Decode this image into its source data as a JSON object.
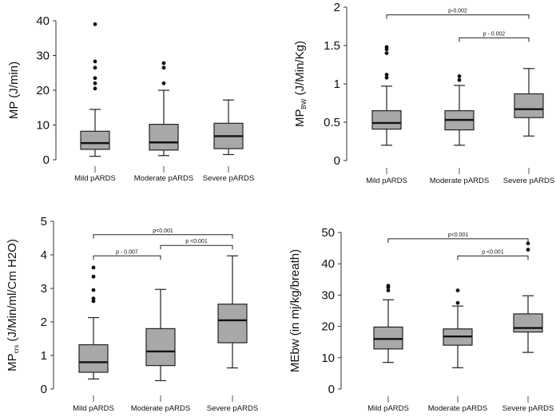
{
  "chart_data": [
    {
      "type": "box",
      "ylabel": "MP (J/min)",
      "yticks": [
        0,
        10,
        20,
        30,
        40
      ],
      "ylim": [
        0,
        40
      ],
      "categories": [
        "Mild pARDS",
        "Moderate pARDS",
        "Severe pARDS"
      ],
      "boxes": [
        {
          "min": 1,
          "q1": 3,
          "median": 4.8,
          "q3": 8.2,
          "max": 14.5,
          "outliers": [
            39,
            28.3,
            26.5,
            23.5,
            22,
            20.5
          ]
        },
        {
          "min": 1.2,
          "q1": 2.8,
          "median": 5,
          "q3": 10.2,
          "max": 20,
          "outliers": [
            27.8,
            26.5,
            22
          ]
        },
        {
          "min": 1.5,
          "q1": 3.2,
          "median": 6.8,
          "q3": 10.5,
          "max": 17.2,
          "outliers": []
        }
      ],
      "significance": []
    },
    {
      "type": "box",
      "ylabel": "MPBW (J/Min/Kg)",
      "ylabel_main": "MP",
      "ylabel_sub": "BW",
      "ylabel_rest": " (J/Min/Kg)",
      "yticks": [
        0,
        0.5,
        1,
        1.5,
        2
      ],
      "ylim": [
        0,
        2
      ],
      "categories": [
        "Mild pARDS",
        "Moderate pARDS",
        "Severe pARDS"
      ],
      "boxes": [
        {
          "min": 0.2,
          "q1": 0.41,
          "median": 0.49,
          "q3": 0.65,
          "max": 0.97,
          "outliers": [
            1.48,
            1.45,
            1.4,
            1.12,
            1.08
          ]
        },
        {
          "min": 0.2,
          "q1": 0.4,
          "median": 0.53,
          "q3": 0.65,
          "max": 0.98,
          "outliers": [
            1.1,
            1.05
          ]
        },
        {
          "min": 0.32,
          "q1": 0.56,
          "median": 0.67,
          "q3": 0.87,
          "max": 1.2,
          "outliers": []
        }
      ],
      "significance": [
        {
          "from": 0,
          "to": 2,
          "label": "p-0.002",
          "y": 1.9
        },
        {
          "from": 1,
          "to": 2,
          "label": "p - 0.002",
          "y": 1.6
        }
      ]
    },
    {
      "type": "box",
      "ylabel": "MPcrs (J/Min/ml/Cm H2O)",
      "ylabel_main": "MP",
      "ylabel_sub": "crs",
      "ylabel_rest": " (J/Min/ml/Cm H2O)",
      "yticks": [
        0,
        1,
        2,
        3,
        4,
        5
      ],
      "ylim": [
        0,
        5
      ],
      "categories": [
        "Mild pARDS",
        "Moderate pARDS",
        "Severe pARDS"
      ],
      "boxes": [
        {
          "min": 0.3,
          "q1": 0.5,
          "median": 0.8,
          "q3": 1.32,
          "max": 2.13,
          "outliers": [
            3.62,
            3.35,
            2.95,
            2.7,
            2.62
          ]
        },
        {
          "min": 0.25,
          "q1": 0.7,
          "median": 1.12,
          "q3": 1.8,
          "max": 2.97,
          "outliers": []
        },
        {
          "min": 0.63,
          "q1": 1.38,
          "median": 2.05,
          "q3": 2.53,
          "max": 3.97,
          "outliers": []
        }
      ],
      "significance": [
        {
          "from": 0,
          "to": 2,
          "label": "p<0.001",
          "y": 4.6
        },
        {
          "from": 0,
          "to": 1,
          "label": "p - 0.007",
          "y": 3.97
        },
        {
          "from": 1,
          "to": 2,
          "label": "p <0.001",
          "y": 4.28
        }
      ]
    },
    {
      "type": "box",
      "ylabel": "MEbw (in mj/kg/breath)",
      "yticks": [
        0,
        10,
        20,
        30,
        40,
        50
      ],
      "ylim": [
        0,
        50
      ],
      "categories": [
        "Mild pARDS",
        "Moderate pARDS",
        "Severe pARDS"
      ],
      "boxes": [
        {
          "min": 8.5,
          "q1": 12.8,
          "median": 16,
          "q3": 19.8,
          "max": 28.5,
          "outliers": [
            33,
            32.5,
            31.5
          ]
        },
        {
          "min": 6.8,
          "q1": 14,
          "median": 16.8,
          "q3": 19.2,
          "max": 26.5,
          "outliers": [
            31.5,
            27.5
          ]
        },
        {
          "min": 11.7,
          "q1": 18.2,
          "median": 19.5,
          "q3": 24,
          "max": 29.8,
          "outliers": [
            46.5,
            44.5
          ]
        }
      ],
      "significance": [
        {
          "from": 0,
          "to": 2,
          "label": "p<0.001",
          "y": 48
        },
        {
          "from": 1,
          "to": 2,
          "label": "p <0.001",
          "y": 42.5
        }
      ]
    }
  ]
}
